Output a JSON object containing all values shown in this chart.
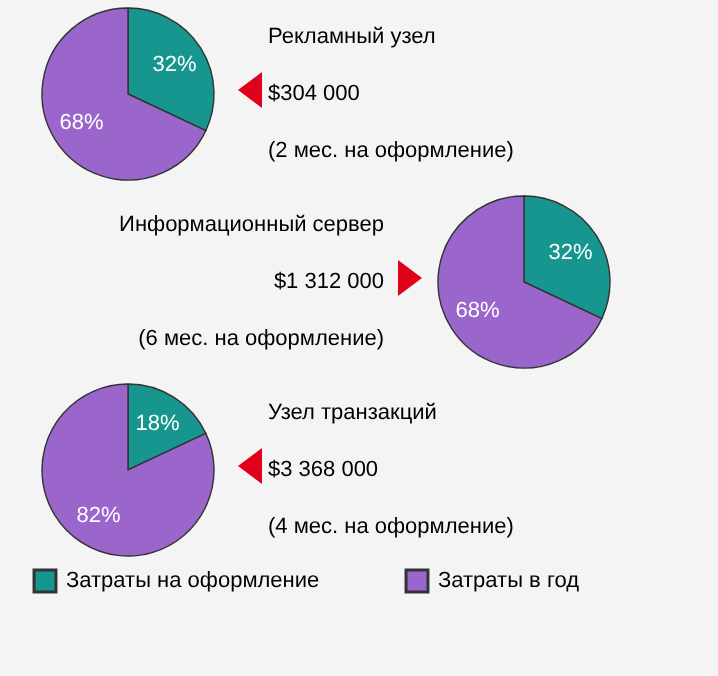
{
  "chart_data": [
    {
      "type": "pie",
      "categories": [
        null,
        null
      ],
      "values": [
        32,
        68
      ],
      "colors": [
        "#16968f",
        "#9b66cc"
      ],
      "value_labels": [
        "32%",
        "68%"
      ],
      "annotations": [
        "Рекламный узел",
        "$304 000",
        "(2 мес. на оформление)"
      ]
    },
    {
      "type": "pie",
      "categories": [
        null,
        null
      ],
      "values": [
        32,
        68
      ],
      "colors": [
        "#16968f",
        "#9b66cc"
      ],
      "value_labels": [
        "32%",
        "68%"
      ],
      "annotations": [
        "Информационный сервер",
        "$1 312 000",
        "(6 мес. на оформление)"
      ]
    },
    {
      "type": "pie",
      "categories": [
        "Затраты на оформление",
        "Затраты в год"
      ],
      "values": [
        18,
        82
      ],
      "colors": [
        "#16968f",
        "#9b66cc"
      ],
      "value_labels": [
        "18%",
        "82%"
      ],
      "annotations": [
        "Узел транзакций",
        "$3 368 000",
        "(4 мес. на оформление)"
      ],
      "legend": "bottom"
    }
  ]
}
